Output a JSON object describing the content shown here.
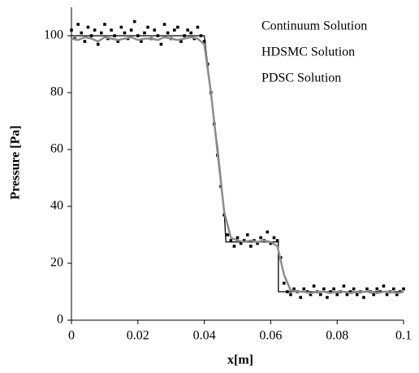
{
  "chart_data": {
    "type": "line",
    "x_label": "x[m]",
    "y_label": "Pressure [Pa]",
    "xlim": [
      0,
      0.1
    ],
    "xticks": [
      0,
      0.02,
      0.04,
      0.06,
      0.08,
      0.1
    ],
    "ylim": [
      0,
      110
    ],
    "yticks": [
      0,
      20,
      40,
      60,
      80,
      100
    ],
    "series": [
      {
        "name": "Continuum Solution",
        "color": "#000000",
        "style": "line",
        "x": [
          0,
          0.04,
          0.041,
          0.042,
          0.043,
          0.044,
          0.045,
          0.046,
          0.0465,
          0.0623,
          0.0623,
          0.1
        ],
        "values": [
          100,
          100,
          90,
          80,
          70,
          61,
          50,
          38,
          27.5,
          27.5,
          10,
          10
        ]
      },
      {
        "name": "HDSMC Solution",
        "color": "#000000",
        "style": "markers",
        "x": [
          0,
          0.001,
          0.002,
          0.003,
          0.004,
          0.005,
          0.006,
          0.007,
          0.008,
          0.009,
          0.01,
          0.011,
          0.012,
          0.013,
          0.014,
          0.015,
          0.016,
          0.017,
          0.018,
          0.019,
          0.02,
          0.021,
          0.022,
          0.023,
          0.024,
          0.025,
          0.026,
          0.027,
          0.028,
          0.029,
          0.03,
          0.031,
          0.032,
          0.033,
          0.034,
          0.035,
          0.036,
          0.037,
          0.038,
          0.039,
          0.04,
          0.041,
          0.042,
          0.043,
          0.044,
          0.045,
          0.046,
          0.047,
          0.048,
          0.049,
          0.05,
          0.051,
          0.052,
          0.053,
          0.054,
          0.055,
          0.056,
          0.057,
          0.058,
          0.059,
          0.06,
          0.061,
          0.062,
          0.063,
          0.064,
          0.065,
          0.066,
          0.067,
          0.068,
          0.069,
          0.07,
          0.071,
          0.072,
          0.073,
          0.074,
          0.075,
          0.076,
          0.077,
          0.078,
          0.079,
          0.08,
          0.081,
          0.082,
          0.083,
          0.084,
          0.085,
          0.086,
          0.087,
          0.088,
          0.089,
          0.09,
          0.091,
          0.092,
          0.093,
          0.094,
          0.095,
          0.096,
          0.097,
          0.098,
          0.099,
          0.1
        ],
        "values": [
          102,
          99,
          104,
          101,
          98,
          103,
          100,
          102,
          97,
          101,
          104,
          99,
          102,
          100,
          98,
          103,
          101,
          99,
          102,
          105,
          100,
          98,
          101,
          103,
          99,
          102,
          100,
          97,
          104,
          101,
          99,
          102,
          103,
          98,
          100,
          102,
          101,
          99,
          103,
          100,
          98,
          90,
          80,
          69,
          58,
          47,
          37,
          30,
          28,
          26,
          29,
          27,
          28,
          30,
          26,
          28,
          27,
          29,
          28,
          31,
          27,
          29,
          28,
          22,
          13,
          10,
          9,
          11,
          10,
          8,
          11,
          10,
          9,
          12,
          10,
          9,
          11,
          8,
          10,
          11,
          9,
          10,
          12,
          9,
          10,
          11,
          9,
          10,
          8,
          11,
          10,
          9,
          11,
          10,
          12,
          9,
          10,
          11,
          9,
          10,
          11
        ]
      },
      {
        "name": "PDSC Solution",
        "color": "#8c8c8c",
        "style": "line",
        "x": [
          0,
          0.002,
          0.004,
          0.006,
          0.008,
          0.01,
          0.012,
          0.014,
          0.016,
          0.018,
          0.02,
          0.022,
          0.024,
          0.026,
          0.028,
          0.03,
          0.032,
          0.034,
          0.036,
          0.038,
          0.04,
          0.042,
          0.044,
          0.046,
          0.048,
          0.05,
          0.052,
          0.054,
          0.056,
          0.058,
          0.06,
          0.062,
          0.064,
          0.066,
          0.068,
          0.07,
          0.072,
          0.074,
          0.076,
          0.078,
          0.08,
          0.082,
          0.084,
          0.086,
          0.088,
          0.09,
          0.092,
          0.094,
          0.096,
          0.098,
          0.1
        ],
        "values": [
          99,
          98.5,
          99.5,
          99,
          98,
          99.5,
          99,
          98.5,
          99,
          99.5,
          98.5,
          99,
          99,
          98.5,
          99.5,
          99,
          98.5,
          99,
          99.5,
          99,
          97,
          80,
          59,
          38,
          29,
          28,
          27.5,
          28,
          27.5,
          28,
          27.5,
          26,
          16,
          10.5,
          10,
          10,
          9.5,
          10,
          10,
          9.5,
          10,
          10,
          9.5,
          10,
          10,
          10,
          9.5,
          10,
          10,
          9.5,
          10
        ]
      }
    ]
  }
}
